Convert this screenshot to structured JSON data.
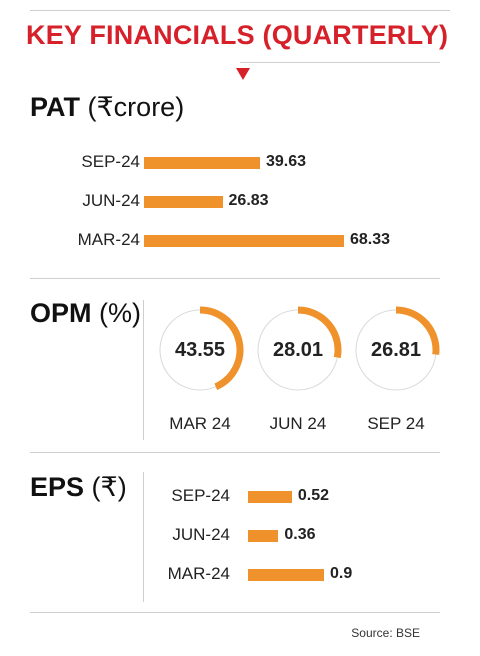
{
  "title": "KEY FINANCIALS (QUARTERLY)",
  "colors": {
    "title": "#d6202a",
    "bar": "#f0922b",
    "ring_track": "#d9d9d9"
  },
  "chart_data": [
    {
      "type": "bar",
      "orientation": "horizontal",
      "title_main": "PAT",
      "title_unit": "(₹crore)",
      "categories": [
        "SEP-24",
        "JUN-24",
        "MAR-24"
      ],
      "values": [
        39.63,
        26.83,
        68.33
      ],
      "value_labels": [
        "39.63",
        "26.83",
        "68.33"
      ]
    },
    {
      "type": "pie",
      "style": "donut-gauge",
      "title_main": "OPM",
      "title_unit": "(%)",
      "categories": [
        "MAR 24",
        "JUN 24",
        "SEP 24"
      ],
      "values": [
        43.55,
        28.01,
        26.81
      ],
      "value_labels": [
        "43.55",
        "28.01",
        "26.81"
      ]
    },
    {
      "type": "bar",
      "orientation": "horizontal",
      "title_main": "EPS",
      "title_unit": "(₹)",
      "categories": [
        "SEP-24",
        "JUN-24",
        "MAR-24"
      ],
      "values": [
        0.52,
        0.36,
        0.9
      ],
      "value_labels": [
        "0.52",
        "0.36",
        "0.9"
      ]
    }
  ],
  "source": "Source: BSE"
}
